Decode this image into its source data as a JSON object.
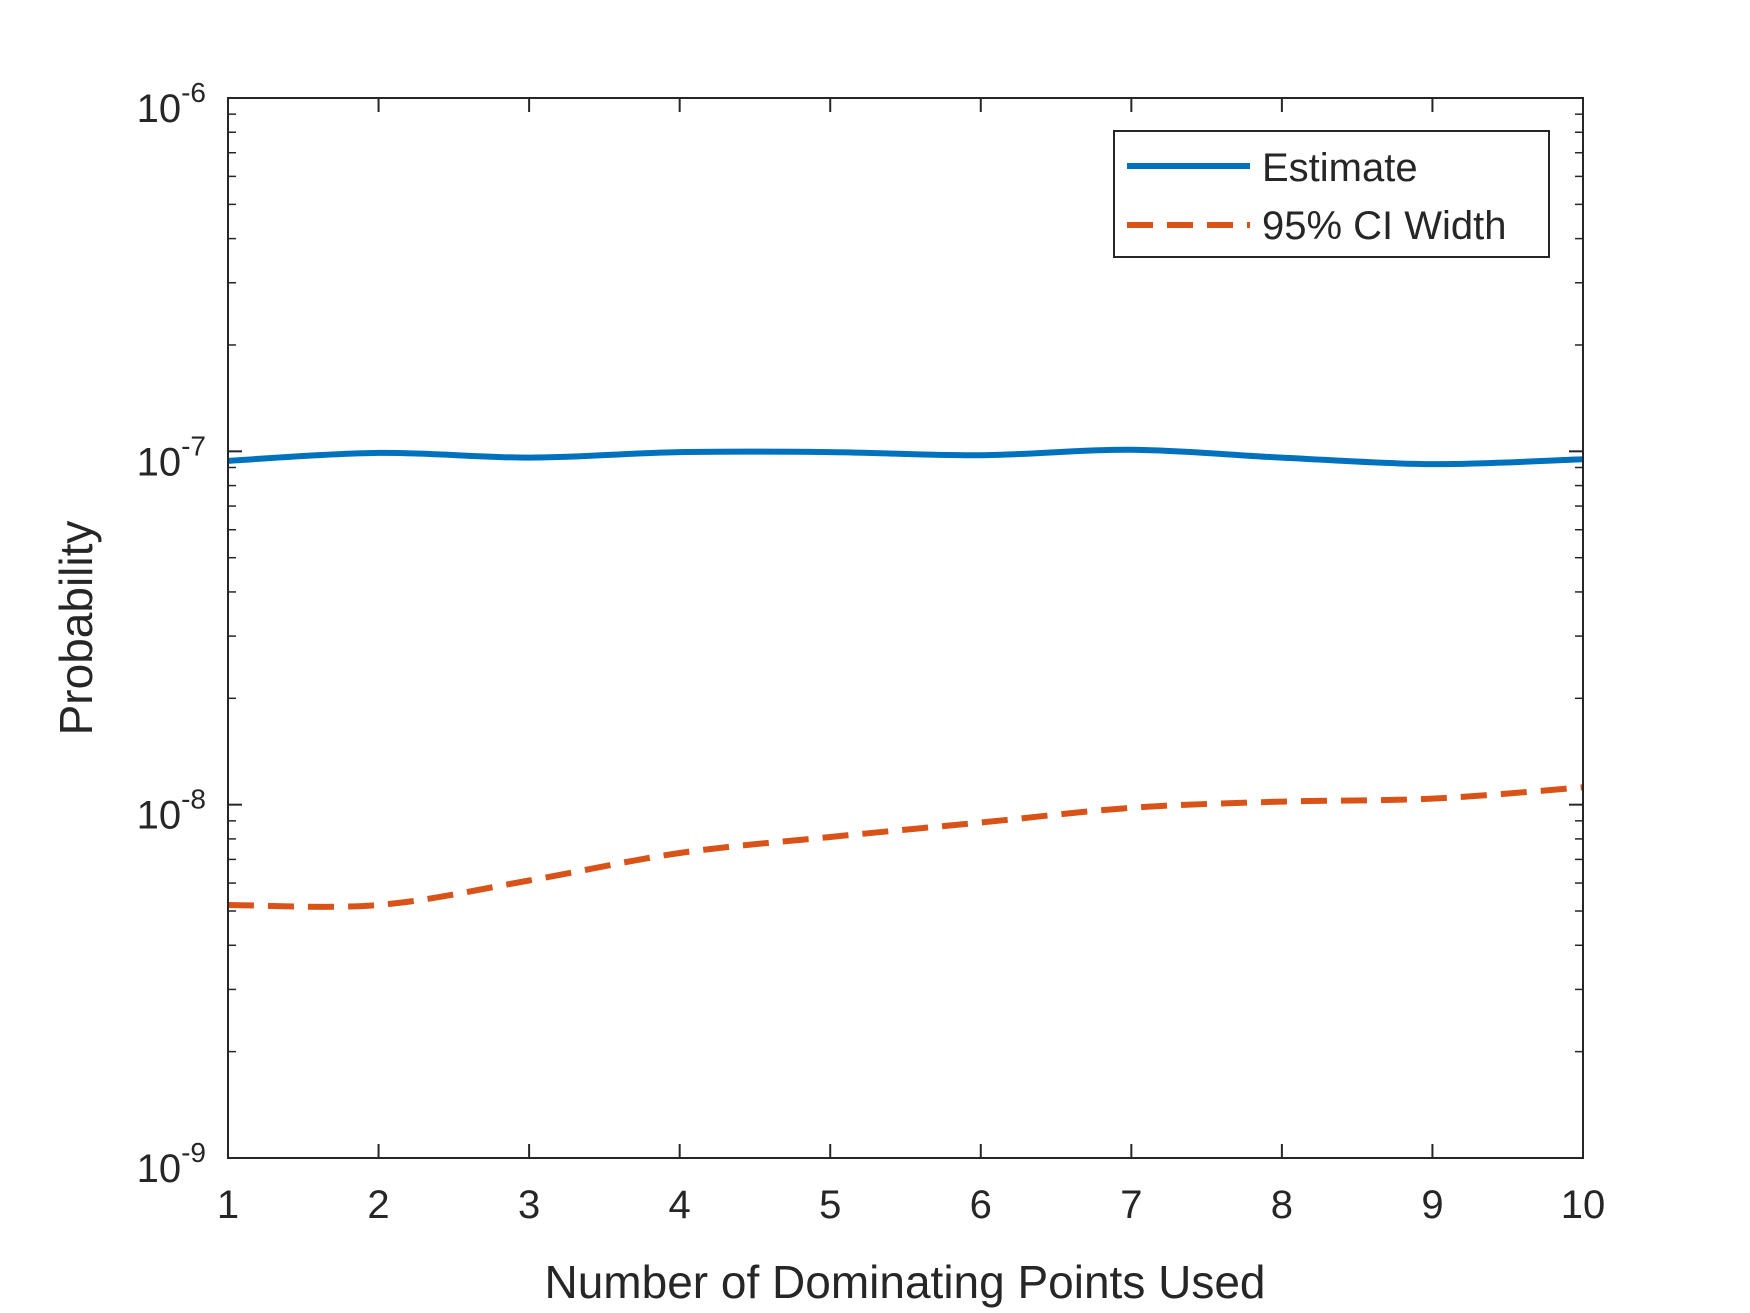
{
  "chart_data": {
    "type": "line",
    "title": "",
    "xlabel": "Number of Dominating Points Used",
    "ylabel": "Probability",
    "x": [
      1,
      2,
      3,
      4,
      5,
      6,
      7,
      8,
      9,
      10
    ],
    "xlim": [
      1,
      10
    ],
    "ylim": [
      1e-09,
      1e-06
    ],
    "yscale": "log",
    "xticks": [
      1,
      2,
      3,
      4,
      5,
      6,
      7,
      8,
      9,
      10
    ],
    "xtick_labels": [
      "1",
      "2",
      "3",
      "4",
      "5",
      "6",
      "7",
      "8",
      "9",
      "10"
    ],
    "yticks": [
      {
        "value": 1e-09,
        "base": "10",
        "exp": "-9"
      },
      {
        "value": 1e-08,
        "base": "10",
        "exp": "-8"
      },
      {
        "value": 1e-07,
        "base": "10",
        "exp": "-7"
      },
      {
        "value": 1e-06,
        "base": "10",
        "exp": "-6"
      }
    ],
    "grid": false,
    "legend_location": "top-right",
    "series": [
      {
        "name": "Estimate",
        "color": "#0072BD",
        "style": "solid",
        "values": [
          9.4e-08,
          9.9e-08,
          9.6e-08,
          9.95e-08,
          9.95e-08,
          9.75e-08,
          1.01e-07,
          9.6e-08,
          9.2e-08,
          9.5e-08
        ]
      },
      {
        "name": "95% CI Width",
        "color": "#D95319",
        "style": "dashed",
        "values": [
          5.2e-09,
          5.2e-09,
          6.1e-09,
          7.3e-09,
          8.1e-09,
          8.9e-09,
          9.8e-09,
          1.02e-08,
          1.04e-08,
          1.12e-08
        ]
      }
    ]
  }
}
